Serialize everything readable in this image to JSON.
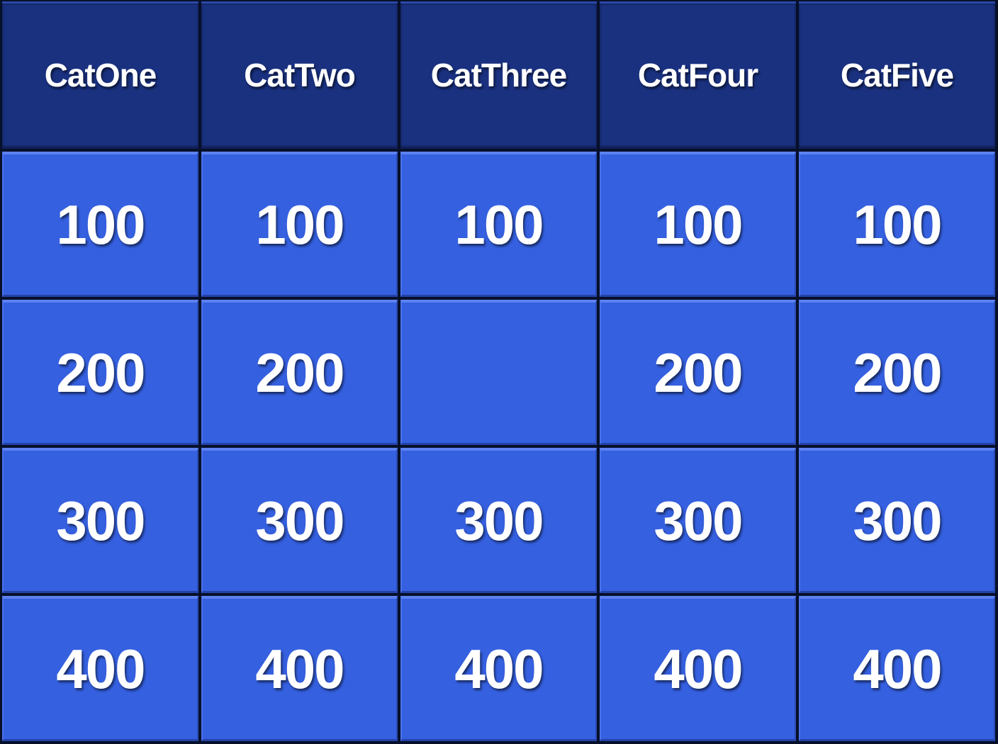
{
  "categories": [
    "CatOne",
    "CatTwo",
    "CatThree",
    "CatFour",
    "CatFive"
  ],
  "rows": [
    [
      "100",
      "100",
      "100",
      "100",
      "100"
    ],
    [
      "200",
      "200",
      "",
      "200",
      "200"
    ],
    [
      "300",
      "300",
      "300",
      "300",
      "300"
    ],
    [
      "400",
      "400",
      "400",
      "400",
      "400"
    ]
  ],
  "colors": {
    "header": "#1a3180",
    "tile": "#3560e0",
    "text": "#ffffff"
  }
}
